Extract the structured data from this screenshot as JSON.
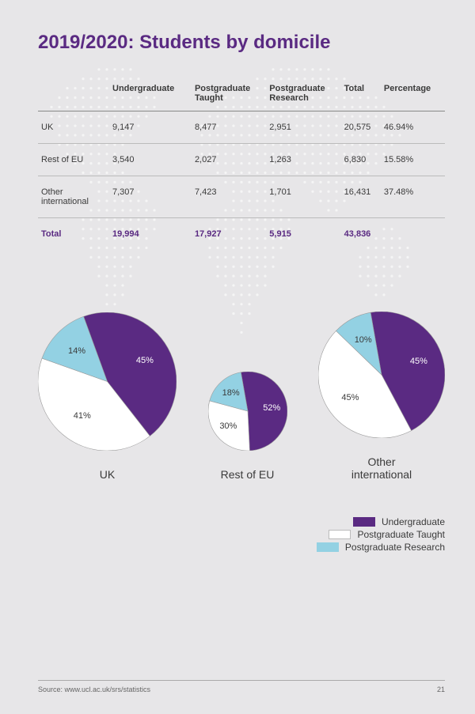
{
  "title": "2019/2020: Students by domicile",
  "colors": {
    "accent": "#5a2a82",
    "undergrad": "#5a2a82",
    "pgt": "#ffffff",
    "pgr": "#93d1e3",
    "page_bg": "#e7e6e8",
    "slice_border": "#9a9a9a",
    "map_dot": "#ffffff"
  },
  "table": {
    "headers": [
      "",
      "Undergraduate",
      "Postgraduate Taught",
      "Postgraduate Research",
      "Total",
      "Percentage"
    ],
    "rows": [
      {
        "label": "UK",
        "cells": [
          "9,147",
          "8,477",
          "2,951",
          "20,575",
          "46.94%"
        ]
      },
      {
        "label": "Rest of EU",
        "cells": [
          "3,540",
          "2,027",
          "1,263",
          "6,830",
          "15.58%"
        ]
      },
      {
        "label": "Other international",
        "cells": [
          "7,307",
          "7,423",
          "1,701",
          "16,431",
          "37.48%"
        ]
      }
    ],
    "total": {
      "label": "Total",
      "cells": [
        "19,994",
        "17,927",
        "5,915",
        "43,836",
        ""
      ]
    }
  },
  "charts": [
    {
      "label": "UK",
      "diameter": 175,
      "slices": [
        {
          "key": "undergrad",
          "value": 45,
          "label": "45%",
          "label_light": true
        },
        {
          "key": "pgt",
          "value": 41,
          "label": "41%",
          "label_light": false
        },
        {
          "key": "pgr",
          "value": 14,
          "label": "14%",
          "label_light": false
        }
      ],
      "start_angle_deg": -20
    },
    {
      "label": "Rest of EU",
      "diameter": 100,
      "slices": [
        {
          "key": "undergrad",
          "value": 52,
          "label": "52%",
          "label_light": true
        },
        {
          "key": "pgt",
          "value": 30,
          "label": "30%",
          "label_light": false
        },
        {
          "key": "pgr",
          "value": 18,
          "label": "18%",
          "label_light": false
        }
      ],
      "start_angle_deg": -10
    },
    {
      "label": "Other international",
      "diameter": 160,
      "slices": [
        {
          "key": "undergrad",
          "value": 45,
          "label": "45%",
          "label_light": true
        },
        {
          "key": "pgt",
          "value": 45,
          "label": "45%",
          "label_light": false
        },
        {
          "key": "pgr",
          "value": 10,
          "label": "10%",
          "label_light": false
        }
      ],
      "start_angle_deg": -10
    }
  ],
  "legend": [
    {
      "key": "undergrad",
      "label": "Undergraduate"
    },
    {
      "key": "pgt",
      "label": "Postgraduate Taught"
    },
    {
      "key": "pgr",
      "label": "Postgraduate Research"
    }
  ],
  "footer": {
    "source": "Source: www.ucl.ac.uk/srs/statistics",
    "page": "21"
  }
}
